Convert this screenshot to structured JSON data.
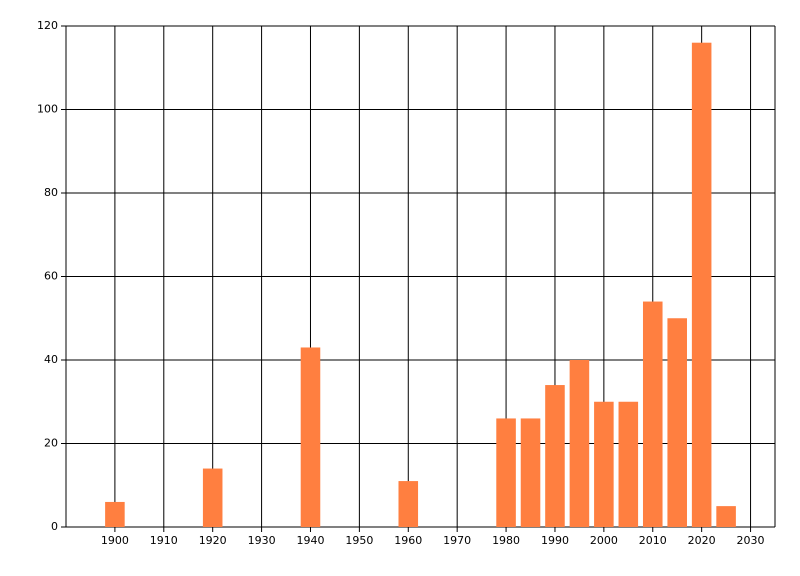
{
  "chart_data": {
    "type": "bar",
    "x": [
      1900,
      1920,
      1940,
      1960,
      1980,
      1985,
      1990,
      1995,
      2000,
      2005,
      2010,
      2015,
      2020,
      2025
    ],
    "values": [
      6,
      14,
      43,
      11,
      26,
      26,
      34,
      40,
      30,
      30,
      54,
      50,
      116,
      5
    ],
    "color": "#ff7f40",
    "xlim": [
      1890,
      2035
    ],
    "xticks": [
      1900,
      1910,
      1920,
      1930,
      1940,
      1950,
      1960,
      1970,
      1980,
      1990,
      2000,
      2010,
      2020,
      2030
    ],
    "ylim": [
      0,
      120
    ],
    "yticks": [
      0,
      20,
      40,
      60,
      80,
      100,
      120
    ],
    "grid": true
  }
}
